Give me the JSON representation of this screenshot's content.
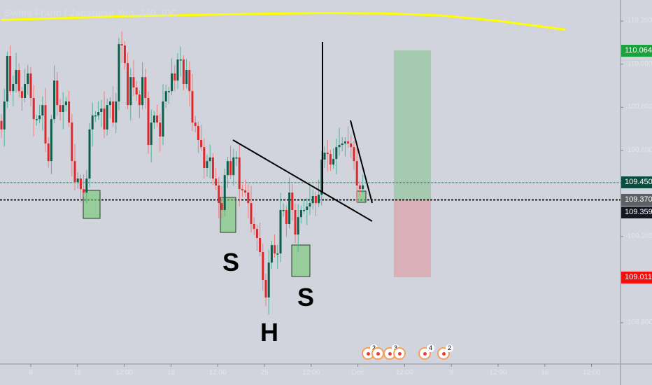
{
  "chart_data": {
    "type": "candlestick",
    "title": "Swiss Franc / Japanese Yen, 240, IDC",
    "closes": [
      109.697,
      109.827,
      110.038,
      109.875,
      109.908,
      109.973,
      109.875,
      109.843,
      109.908,
      109.957,
      109.843,
      109.745,
      109.745,
      109.762,
      109.81,
      109.632,
      109.55,
      109.745,
      109.924,
      109.81,
      109.778,
      109.81,
      109.827,
      109.729,
      109.55,
      109.453,
      109.469,
      109.42,
      109.404,
      109.469,
      109.697,
      109.762,
      109.762,
      109.778,
      109.794,
      109.697,
      109.81,
      109.827,
      109.729,
      109.827,
      110.093,
      110.087,
      110.005,
      109.81,
      109.94,
      109.892,
      109.859,
      109.81,
      109.94,
      109.843,
      109.625,
      109.729,
      109.762,
      109.729,
      109.664,
      109.827,
      109.875,
      109.875,
      109.957,
      109.924,
      110.022,
      110.022,
      109.908,
      109.973,
      109.875,
      109.729,
      109.713,
      109.648,
      109.615,
      109.518,
      109.55,
      109.567,
      109.469,
      109.437,
      109.355,
      109.323,
      109.485,
      109.55,
      109.485,
      109.567,
      109.567,
      109.42,
      109.414,
      109.404,
      109.355,
      109.258,
      109.235,
      109.193,
      109.128,
      108.998,
      108.917,
      109.079,
      109.16,
      109.121,
      109.121,
      109.323,
      109.323,
      109.258,
      109.404,
      109.323,
      109.209,
      109.29,
      109.323,
      109.323,
      109.339,
      109.355,
      109.388,
      109.355,
      109.394,
      109.557,
      109.589,
      109.583,
      109.534,
      109.56,
      109.615,
      109.625,
      109.632,
      109.641,
      109.632,
      109.615,
      109.55,
      109.437,
      109.42,
      109.437
    ],
    "moving_average": [
      [
        0,
        110.205
      ],
      [
        40,
        110.222
      ],
      [
        80,
        110.232
      ],
      [
        110,
        110.238
      ],
      [
        130,
        110.236
      ],
      [
        150,
        110.226
      ],
      [
        170,
        110.2
      ],
      [
        192,
        110.16
      ]
    ],
    "y_ticks": [
      "110.200",
      "110.000",
      "109.800",
      "109.600",
      "109.200",
      "108.800"
    ],
    "x_ticks": [
      "6",
      "11",
      "12:00",
      "18",
      "12:00",
      "25",
      "12:00",
      "Dec",
      "12:00",
      "9",
      "12:00",
      "16",
      "12:00"
    ],
    "ylim": [
      108.65,
      110.3
    ],
    "grid": false,
    "colors": {
      "up": "#0b5e4a",
      "down": "#e0272b",
      "ma": "#ffff00",
      "background": "#d1d4dc"
    },
    "price_labels": [
      {
        "value": "110.064",
        "color": "#1aa33a"
      },
      {
        "value": "109.450",
        "color": "#0a4e3f"
      },
      {
        "value": "109.370",
        "color": "#5d5f63"
      },
      {
        "value": "109.359",
        "color": "#131722"
      },
      {
        "value": "109.011",
        "color": "#f40f0f"
      }
    ],
    "position": {
      "type": "long",
      "entry": 109.37,
      "target": 110.064,
      "stop": 109.011
    },
    "horizontal_lines": [
      109.45,
      109.37
    ],
    "annotations": [
      {
        "text": "S"
      },
      {
        "text": "H"
      },
      {
        "text": "S"
      }
    ],
    "events": [
      {
        "count": "2"
      },
      {
        "count": ""
      },
      {
        "count": "3"
      },
      {
        "count": ""
      },
      {
        "count": "4"
      },
      {
        "count": "2"
      }
    ]
  }
}
